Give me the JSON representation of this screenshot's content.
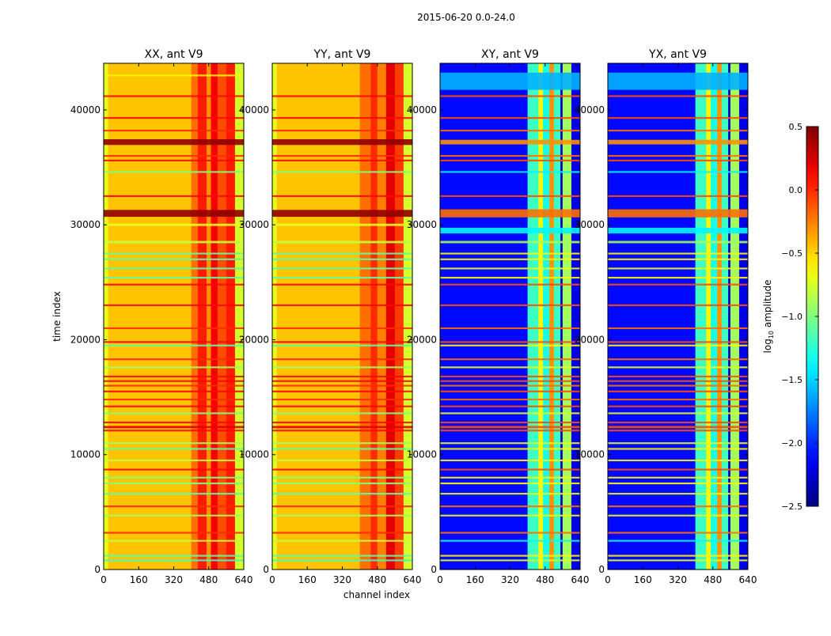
{
  "chart_data": {
    "type": "heatmap",
    "title": "2015-06-20 0.0-24.0",
    "xlabel": "channel index",
    "ylabel": "time index",
    "xlim": [
      0,
      640
    ],
    "ylim": [
      0,
      44060
    ],
    "xticks": [
      "0",
      "160",
      "320",
      "480",
      "640"
    ],
    "xtick_values": [
      0,
      160,
      320,
      480,
      640
    ],
    "yticks": [
      "0",
      "10000",
      "20000",
      "30000",
      "40000"
    ],
    "ytick_values": [
      0,
      10000,
      20000,
      30000,
      40000
    ],
    "colorbar": {
      "label": "log10 amplitude",
      "label_base": "log",
      "label_sub": "10",
      "label_rest": " amplitude",
      "colormap": "jet",
      "range": [
        -2.5,
        0.5
      ],
      "ticks": [
        "0.5",
        "0.0",
        "−0.5",
        "−1.0",
        "−1.5",
        "−2.0",
        "−2.5"
      ],
      "tick_values": [
        0.5,
        0.0,
        -0.5,
        -1.0,
        -1.5,
        -2.0,
        -2.5
      ]
    },
    "panels": [
      {
        "title": "XX, ant V9",
        "channel_bands": [
          [
            0,
            20,
            -0.7
          ],
          [
            20,
            400,
            -0.45
          ],
          [
            400,
            430,
            -0.2
          ],
          [
            430,
            470,
            0.05
          ],
          [
            470,
            490,
            -0.3
          ],
          [
            490,
            520,
            0.15
          ],
          [
            520,
            560,
            -0.1
          ],
          [
            560,
            600,
            0.05
          ],
          [
            600,
            640,
            -0.75
          ]
        ],
        "time_stripes": [
          [
            43000,
            150,
            -0.6
          ],
          [
            41200,
            150,
            0.1
          ],
          [
            39300,
            150,
            0.1
          ],
          [
            38200,
            150,
            0.0
          ],
          [
            37200,
            500,
            0.45
          ],
          [
            36000,
            150,
            0.0
          ],
          [
            35600,
            150,
            0.1
          ],
          [
            34600,
            150,
            -1.0
          ],
          [
            32500,
            150,
            0.1
          ],
          [
            31000,
            600,
            0.45
          ],
          [
            30000,
            200,
            -0.7
          ],
          [
            28500,
            200,
            -0.8
          ],
          [
            27500,
            150,
            -1.1
          ],
          [
            27000,
            150,
            -1.1
          ],
          [
            26200,
            150,
            -1.1
          ],
          [
            25400,
            150,
            -1.1
          ],
          [
            24800,
            150,
            0.1
          ],
          [
            23000,
            150,
            0.1
          ],
          [
            21000,
            150,
            0.0
          ],
          [
            19800,
            150,
            0.1
          ],
          [
            19500,
            150,
            -1.1
          ],
          [
            18300,
            150,
            0.0
          ],
          [
            17600,
            150,
            -0.9
          ],
          [
            16800,
            150,
            0.1
          ],
          [
            16400,
            150,
            0.1
          ],
          [
            16000,
            150,
            0.0
          ],
          [
            15500,
            150,
            0.1
          ],
          [
            14800,
            150,
            0.0
          ],
          [
            14200,
            150,
            0.1
          ],
          [
            13600,
            150,
            -1.0
          ],
          [
            12800,
            150,
            0.1
          ],
          [
            12400,
            200,
            0.2
          ],
          [
            12100,
            150,
            0.1
          ],
          [
            11000,
            150,
            -0.9
          ],
          [
            10500,
            150,
            -1.1
          ],
          [
            9500,
            150,
            -0.8
          ],
          [
            8700,
            150,
            0.1
          ],
          [
            8000,
            150,
            -1.0
          ],
          [
            7500,
            150,
            -1.0
          ],
          [
            6600,
            150,
            -1.1
          ],
          [
            5500,
            150,
            0.0
          ],
          [
            4700,
            150,
            -0.9
          ],
          [
            3200,
            150,
            0.0
          ],
          [
            2500,
            150,
            -0.8
          ],
          [
            1200,
            150,
            -1.1
          ],
          [
            800,
            150,
            -1.2
          ]
        ]
      },
      {
        "title": "YY, ant V9",
        "channel_bands": [
          [
            0,
            20,
            -0.7
          ],
          [
            20,
            400,
            -0.45
          ],
          [
            400,
            450,
            -0.2
          ],
          [
            450,
            480,
            0.0
          ],
          [
            480,
            520,
            -0.25
          ],
          [
            520,
            560,
            0.2
          ],
          [
            560,
            600,
            -0.05
          ],
          [
            600,
            640,
            -0.75
          ]
        ],
        "time_stripes": [
          [
            41200,
            150,
            0.1
          ],
          [
            39300,
            150,
            0.1
          ],
          [
            38200,
            150,
            0.0
          ],
          [
            37200,
            500,
            0.45
          ],
          [
            36000,
            150,
            0.0
          ],
          [
            35600,
            150,
            0.1
          ],
          [
            34600,
            150,
            -1.0
          ],
          [
            32500,
            150,
            0.1
          ],
          [
            31000,
            600,
            0.45
          ],
          [
            30000,
            200,
            -0.7
          ],
          [
            28500,
            200,
            -0.8
          ],
          [
            27500,
            150,
            -1.1
          ],
          [
            27000,
            150,
            -1.1
          ],
          [
            26200,
            150,
            -1.1
          ],
          [
            25400,
            150,
            -1.1
          ],
          [
            24800,
            150,
            0.1
          ],
          [
            23000,
            150,
            0.1
          ],
          [
            21000,
            150,
            0.0
          ],
          [
            19800,
            150,
            0.1
          ],
          [
            19500,
            150,
            -1.1
          ],
          [
            18300,
            150,
            0.0
          ],
          [
            17600,
            150,
            -0.9
          ],
          [
            16800,
            150,
            0.1
          ],
          [
            16400,
            150,
            0.1
          ],
          [
            16000,
            150,
            0.0
          ],
          [
            15500,
            150,
            0.1
          ],
          [
            14800,
            150,
            0.0
          ],
          [
            14200,
            150,
            0.1
          ],
          [
            13600,
            150,
            -1.0
          ],
          [
            12800,
            150,
            0.1
          ],
          [
            12400,
            200,
            0.2
          ],
          [
            12100,
            150,
            0.1
          ],
          [
            11000,
            150,
            -0.9
          ],
          [
            10500,
            150,
            -1.1
          ],
          [
            9500,
            150,
            -0.8
          ],
          [
            8700,
            150,
            0.1
          ],
          [
            8000,
            150,
            -1.0
          ],
          [
            7500,
            150,
            -1.0
          ],
          [
            6600,
            150,
            -1.1
          ],
          [
            5500,
            150,
            0.0
          ],
          [
            4700,
            150,
            -0.9
          ],
          [
            3200,
            150,
            0.0
          ],
          [
            2500,
            150,
            -0.8
          ],
          [
            1200,
            150,
            -1.1
          ],
          [
            800,
            150,
            -1.2
          ]
        ]
      },
      {
        "title": "XY, ant V9",
        "channel_bands": [
          [
            0,
            400,
            -2.1
          ],
          [
            400,
            450,
            -1.2
          ],
          [
            450,
            470,
            -0.6
          ],
          [
            470,
            500,
            -1.3
          ],
          [
            500,
            520,
            -0.3
          ],
          [
            520,
            550,
            -1.2
          ],
          [
            550,
            560,
            -2.3
          ],
          [
            560,
            600,
            -0.9
          ],
          [
            600,
            640,
            -2.2
          ]
        ],
        "time_stripes": [
          [
            42500,
            1500,
            -1.6
          ],
          [
            41200,
            150,
            -0.1
          ],
          [
            39300,
            150,
            -0.1
          ],
          [
            38200,
            150,
            -0.2
          ],
          [
            37200,
            400,
            -0.3
          ],
          [
            36000,
            150,
            -0.2
          ],
          [
            35600,
            150,
            -0.1
          ],
          [
            34600,
            150,
            -1.4
          ],
          [
            32500,
            150,
            -0.1
          ],
          [
            31000,
            700,
            -0.2
          ],
          [
            29500,
            500,
            -1.4
          ],
          [
            28500,
            200,
            -0.9
          ],
          [
            27500,
            150,
            -0.6
          ],
          [
            27000,
            150,
            -0.6
          ],
          [
            26200,
            150,
            -0.7
          ],
          [
            25400,
            150,
            -0.6
          ],
          [
            24800,
            150,
            -0.1
          ],
          [
            23000,
            150,
            -0.1
          ],
          [
            21000,
            150,
            -0.2
          ],
          [
            19800,
            150,
            -0.1
          ],
          [
            19500,
            150,
            -0.6
          ],
          [
            18300,
            150,
            -0.2
          ],
          [
            17600,
            150,
            -0.7
          ],
          [
            16800,
            150,
            -0.1
          ],
          [
            16400,
            150,
            -0.1
          ],
          [
            16000,
            150,
            -0.2
          ],
          [
            15500,
            150,
            -0.1
          ],
          [
            14800,
            150,
            -0.2
          ],
          [
            14200,
            150,
            -0.1
          ],
          [
            13600,
            150,
            -0.7
          ],
          [
            12800,
            150,
            -0.1
          ],
          [
            12400,
            200,
            -0.1
          ],
          [
            12100,
            150,
            -0.1
          ],
          [
            11000,
            150,
            -0.7
          ],
          [
            10500,
            150,
            -0.6
          ],
          [
            9500,
            150,
            -0.6
          ],
          [
            8700,
            150,
            -0.1
          ],
          [
            8000,
            150,
            -0.6
          ],
          [
            7500,
            150,
            -0.6
          ],
          [
            6600,
            150,
            -0.7
          ],
          [
            5500,
            150,
            -0.2
          ],
          [
            4700,
            150,
            -0.7
          ],
          [
            3200,
            150,
            -0.2
          ],
          [
            2500,
            150,
            -1.4
          ],
          [
            1200,
            150,
            -0.6
          ],
          [
            800,
            150,
            -0.7
          ]
        ]
      },
      {
        "title": "YX, ant V9",
        "channel_bands": [
          [
            0,
            400,
            -2.1
          ],
          [
            400,
            450,
            -1.2
          ],
          [
            450,
            470,
            -0.6
          ],
          [
            470,
            500,
            -1.3
          ],
          [
            500,
            520,
            -0.3
          ],
          [
            520,
            550,
            -1.2
          ],
          [
            550,
            560,
            -2.3
          ],
          [
            560,
            600,
            -0.9
          ],
          [
            600,
            640,
            -2.2
          ]
        ],
        "time_stripes": [
          [
            42500,
            1500,
            -1.6
          ],
          [
            41200,
            150,
            -0.1
          ],
          [
            39300,
            150,
            -0.1
          ],
          [
            38200,
            150,
            -0.2
          ],
          [
            37200,
            400,
            -0.3
          ],
          [
            36000,
            150,
            -0.2
          ],
          [
            35600,
            150,
            -0.1
          ],
          [
            34600,
            150,
            -1.4
          ],
          [
            32500,
            150,
            -0.1
          ],
          [
            31000,
            700,
            -0.2
          ],
          [
            29500,
            500,
            -1.4
          ],
          [
            28500,
            200,
            -0.9
          ],
          [
            27500,
            150,
            -0.6
          ],
          [
            27000,
            150,
            -0.6
          ],
          [
            26200,
            150,
            -0.7
          ],
          [
            25400,
            150,
            -0.6
          ],
          [
            24800,
            150,
            -0.1
          ],
          [
            23000,
            150,
            -0.1
          ],
          [
            21000,
            150,
            -0.2
          ],
          [
            19800,
            150,
            -0.1
          ],
          [
            19500,
            150,
            -0.6
          ],
          [
            18300,
            150,
            -0.2
          ],
          [
            17600,
            150,
            -0.7
          ],
          [
            16800,
            150,
            -0.1
          ],
          [
            16400,
            150,
            -0.1
          ],
          [
            16000,
            150,
            -0.2
          ],
          [
            15500,
            150,
            -0.1
          ],
          [
            14800,
            150,
            -0.2
          ],
          [
            14200,
            150,
            -0.1
          ],
          [
            13600,
            150,
            -0.7
          ],
          [
            12800,
            150,
            -0.1
          ],
          [
            12400,
            200,
            -0.1
          ],
          [
            12100,
            150,
            -0.1
          ],
          [
            11000,
            150,
            -0.7
          ],
          [
            10500,
            150,
            -0.6
          ],
          [
            9500,
            150,
            -0.6
          ],
          [
            8700,
            150,
            -0.1
          ],
          [
            8000,
            150,
            -0.6
          ],
          [
            7500,
            150,
            -0.6
          ],
          [
            6600,
            150,
            -0.7
          ],
          [
            5500,
            150,
            -0.2
          ],
          [
            4700,
            150,
            -0.7
          ],
          [
            3200,
            150,
            -0.2
          ],
          [
            2500,
            150,
            -1.4
          ],
          [
            1200,
            150,
            -0.6
          ],
          [
            800,
            150,
            -0.7
          ]
        ]
      }
    ]
  }
}
